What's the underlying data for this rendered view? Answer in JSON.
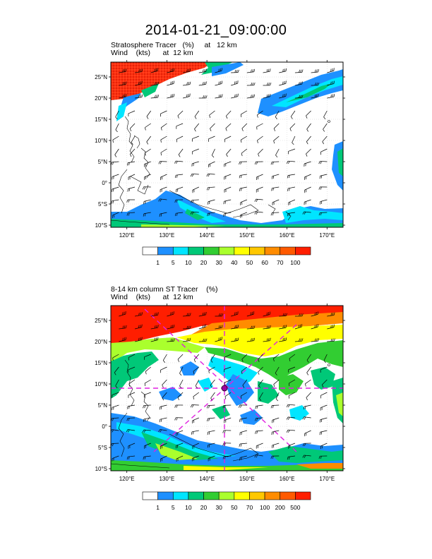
{
  "header": {
    "title": "2014-01-21_09:00:00"
  },
  "panels": [
    {
      "id": "top",
      "title_line1": "Stratosphere Tracer   (%)     at   12 km",
      "title_line2": "Wind    (kts)      at  12 km",
      "lat_labels": [
        "25°N",
        "20°N",
        "15°N",
        "10°N",
        "5°N",
        "0°",
        "5°S",
        "10°S"
      ],
      "lon_labels": [
        "120°E",
        "130°E",
        "140°E",
        "150°E",
        "160°E",
        "170°E"
      ],
      "colorbar": {
        "labels": [
          "1",
          "5",
          "10",
          "20",
          "30",
          "40",
          "50",
          "60",
          "70",
          "100"
        ],
        "colors": [
          "#ffffff",
          "#1e90ff",
          "#00e5ff",
          "#00c878",
          "#32cd32",
          "#aaff2d",
          "#ffff00",
          "#ffc800",
          "#ff8c00",
          "#ff5a00",
          "#ff1e00"
        ]
      }
    },
    {
      "id": "bottom",
      "title_line1": "8-14 km column ST Tracer    (%)",
      "title_line2": "Wind    (kts)      at  12 km",
      "lat_labels": [
        "25°N",
        "20°N",
        "15°N",
        "10°N",
        "5°N",
        "0°",
        "5°S",
        "10°S"
      ],
      "lon_labels": [
        "120°E",
        "130°E",
        "140°E",
        "150°E",
        "160°E",
        "170°E"
      ],
      "colorbar": {
        "labels": [
          "1",
          "5",
          "10",
          "20",
          "30",
          "50",
          "70",
          "100",
          "200",
          "500"
        ],
        "colors": [
          "#ffffff",
          "#1e90ff",
          "#00e5ff",
          "#00c878",
          "#32cd32",
          "#aaff2d",
          "#ffff00",
          "#ffc800",
          "#ff8c00",
          "#ff5a00",
          "#ff1e00"
        ]
      }
    }
  ]
}
